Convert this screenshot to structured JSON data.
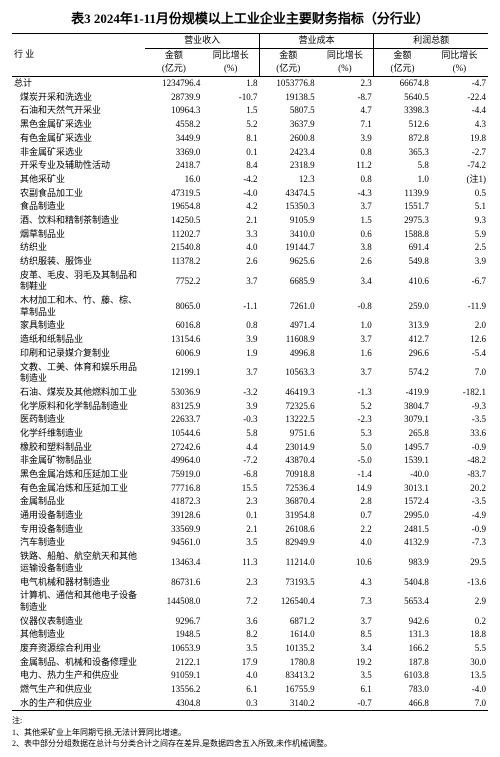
{
  "title": "表3  2024年1-11月份规模以上工业企业主要财务指标（分行业）",
  "headers": {
    "industry": "行  业",
    "group1": "营业收入",
    "group2": "营业成本",
    "group3": "利润总额",
    "amount": "金额",
    "amount_unit": "(亿元)",
    "growth": "同比增长",
    "growth_unit": "(%)"
  },
  "total_label": "总计",
  "total": [
    "1234796.4",
    "1.8",
    "1053776.8",
    "2.3",
    "66674.8",
    "-4.7"
  ],
  "rows": [
    {
      "name": "煤炭开采和洗选业",
      "v": [
        "28739.9",
        "-10.7",
        "19138.5",
        "-8.7",
        "5640.5",
        "-22.4"
      ]
    },
    {
      "name": "石油和天然气开采业",
      "v": [
        "10964.3",
        "1.5",
        "5807.5",
        "4.7",
        "3398.3",
        "-4.4"
      ]
    },
    {
      "name": "黑色金属矿采选业",
      "v": [
        "4558.2",
        "5.2",
        "3637.9",
        "7.1",
        "512.6",
        "4.3"
      ]
    },
    {
      "name": "有色金属矿采选业",
      "v": [
        "3449.9",
        "8.1",
        "2600.8",
        "3.9",
        "872.8",
        "19.8"
      ]
    },
    {
      "name": "非金属矿采选业",
      "v": [
        "3369.0",
        "0.1",
        "2423.4",
        "0.8",
        "365.3",
        "-2.7"
      ]
    },
    {
      "name": "开采专业及辅助性活动",
      "v": [
        "2418.7",
        "8.4",
        "2318.9",
        "11.2",
        "5.8",
        "-74.2"
      ]
    },
    {
      "name": "其他采矿业",
      "v": [
        "16.0",
        "-4.2",
        "12.3",
        "0.8",
        "1.0",
        "(注1)"
      ]
    },
    {
      "name": "农副食品加工业",
      "v": [
        "47319.5",
        "-4.0",
        "43474.5",
        "-4.3",
        "1139.9",
        "0.5"
      ]
    },
    {
      "name": "食品制造业",
      "v": [
        "19654.8",
        "4.2",
        "15350.3",
        "3.7",
        "1551.7",
        "5.1"
      ]
    },
    {
      "name": "酒、饮料和精制茶制造业",
      "v": [
        "14250.5",
        "2.1",
        "9105.9",
        "1.5",
        "2975.3",
        "9.3"
      ]
    },
    {
      "name": "烟草制品业",
      "v": [
        "11202.7",
        "3.3",
        "3410.0",
        "0.6",
        "1588.8",
        "5.9"
      ]
    },
    {
      "name": "纺织业",
      "v": [
        "21540.8",
        "4.0",
        "19144.7",
        "3.8",
        "691.4",
        "2.5"
      ]
    },
    {
      "name": "纺织服装、服饰业",
      "v": [
        "11378.2",
        "2.6",
        "9625.6",
        "2.6",
        "549.8",
        "3.9"
      ]
    },
    {
      "name": "皮革、毛皮、羽毛及其制品和制鞋业",
      "v": [
        "7752.2",
        "3.7",
        "6685.9",
        "3.4",
        "410.6",
        "-6.7"
      ]
    },
    {
      "name": "木材加工和木、竹、藤、棕、草制品业",
      "v": [
        "8065.0",
        "-1.1",
        "7261.0",
        "-0.8",
        "259.0",
        "-11.9"
      ]
    },
    {
      "name": "家具制造业",
      "v": [
        "6016.8",
        "0.8",
        "4971.4",
        "1.0",
        "313.9",
        "2.0"
      ]
    },
    {
      "name": "造纸和纸制品业",
      "v": [
        "13154.6",
        "3.9",
        "11608.9",
        "3.7",
        "412.7",
        "12.6"
      ]
    },
    {
      "name": "印刷和记录媒介复制业",
      "v": [
        "6006.9",
        "1.9",
        "4996.8",
        "1.6",
        "296.6",
        "-5.4"
      ]
    },
    {
      "name": "文教、工美、体育和娱乐用品制造业",
      "v": [
        "12199.1",
        "3.7",
        "10563.3",
        "3.7",
        "574.2",
        "7.0"
      ]
    },
    {
      "name": "石油、煤炭及其他燃料加工业",
      "v": [
        "53036.9",
        "-3.2",
        "46419.3",
        "-1.3",
        "-419.9",
        "-182.1"
      ]
    },
    {
      "name": "化学原料和化学制品制造业",
      "v": [
        "83125.9",
        "3.9",
        "72325.6",
        "5.2",
        "3804.7",
        "-9.3"
      ]
    },
    {
      "name": "医药制造业",
      "v": [
        "22633.7",
        "-0.3",
        "13222.5",
        "-2.3",
        "3079.1",
        "-3.5"
      ]
    },
    {
      "name": "化学纤维制造业",
      "v": [
        "10544.6",
        "5.8",
        "9751.6",
        "5.3",
        "265.8",
        "33.6"
      ]
    },
    {
      "name": "橡胶和塑料制品业",
      "v": [
        "27242.6",
        "4.4",
        "23014.9",
        "5.0",
        "1495.7",
        "-0.9"
      ]
    },
    {
      "name": "非金属矿物制品业",
      "v": [
        "49964.0",
        "-7.2",
        "43870.4",
        "-5.0",
        "1539.1",
        "-48.2"
      ]
    },
    {
      "name": "黑色金属冶炼和压延加工业",
      "v": [
        "75919.0",
        "-6.8",
        "70918.8",
        "-1.4",
        "-40.0",
        "-83.7"
      ]
    },
    {
      "name": "有色金属冶炼和压延加工业",
      "v": [
        "77716.8",
        "15.5",
        "72536.4",
        "14.9",
        "3013.1",
        "20.2"
      ]
    },
    {
      "name": "金属制品业",
      "v": [
        "41872.3",
        "2.3",
        "36870.4",
        "2.8",
        "1572.4",
        "-3.5"
      ]
    },
    {
      "name": "通用设备制造业",
      "v": [
        "39128.6",
        "0.1",
        "31954.8",
        "0.7",
        "2995.0",
        "-4.9"
      ]
    },
    {
      "name": "专用设备制造业",
      "v": [
        "33569.9",
        "2.1",
        "26108.6",
        "2.2",
        "2481.5",
        "-0.9"
      ]
    },
    {
      "name": "汽车制造业",
      "v": [
        "94561.0",
        "3.5",
        "82949.9",
        "4.0",
        "4132.9",
        "-7.3"
      ]
    },
    {
      "name": "铁路、船舶、航空航天和其他运输设备制造业",
      "v": [
        "13463.4",
        "11.3",
        "11214.0",
        "10.6",
        "983.9",
        "29.5"
      ]
    },
    {
      "name": "电气机械和器材制造业",
      "v": [
        "86731.6",
        "2.3",
        "73193.5",
        "4.3",
        "5404.8",
        "-13.6"
      ]
    },
    {
      "name": "计算机、通信和其他电子设备制造业",
      "v": [
        "144508.0",
        "7.2",
        "126540.4",
        "7.3",
        "5653.4",
        "2.9"
      ]
    },
    {
      "name": "仪器仪表制造业",
      "v": [
        "9296.7",
        "3.6",
        "6871.2",
        "3.7",
        "942.6",
        "0.2"
      ]
    },
    {
      "name": "其他制造业",
      "v": [
        "1948.5",
        "8.2",
        "1614.0",
        "8.5",
        "131.3",
        "18.8"
      ]
    },
    {
      "name": "废弃资源综合利用业",
      "v": [
        "10653.9",
        "3.5",
        "10135.2",
        "3.4",
        "166.2",
        "5.5"
      ]
    },
    {
      "name": "金属制品、机械和设备修理业",
      "v": [
        "2122.1",
        "17.9",
        "1780.8",
        "19.2",
        "187.8",
        "30.0"
      ]
    },
    {
      "name": "电力、热力生产和供应业",
      "v": [
        "91059.1",
        "4.0",
        "83413.2",
        "3.5",
        "6103.8",
        "13.5"
      ]
    },
    {
      "name": "燃气生产和供应业",
      "v": [
        "13556.2",
        "6.1",
        "16755.9",
        "6.1",
        "783.0",
        "-4.0"
      ]
    },
    {
      "name": "水的生产和供应业",
      "v": [
        "4304.8",
        "0.3",
        "3140.2",
        "-0.7",
        "466.8",
        "7.0"
      ]
    }
  ],
  "footnotes": [
    "注:",
    "  1、其他采矿业上年同期亏损,无法计算同比增速。",
    "  2、表中部分分组数据在总计与分类合计之间存在差异,是数据四舍五入所致,未作机械调整。"
  ]
}
